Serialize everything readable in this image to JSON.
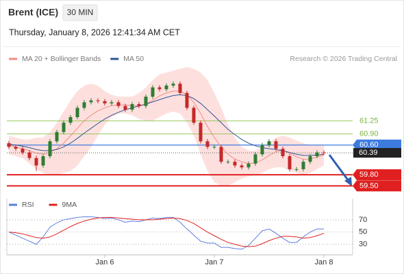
{
  "header": {
    "title": "Brent (ICE)",
    "interval": "30 MIN",
    "datetime": "Thursday, January 8, 2026 12:41:34 AM CET",
    "source": "Research © 2026 Trading Central"
  },
  "chart_data": [
    {
      "type": "candlestick",
      "categories": [
        null,
        null,
        null,
        null,
        null,
        null,
        null,
        null,
        null,
        null,
        null,
        null,
        null,
        null,
        "Jan 6",
        null,
        null,
        null,
        null,
        null,
        null,
        null,
        null,
        null,
        null,
        null,
        null,
        null,
        null,
        null,
        "Jan 7",
        null,
        null,
        null,
        null,
        null,
        null,
        null,
        null,
        null,
        null,
        null,
        null,
        null,
        null,
        null,
        "Jan 8"
      ],
      "open": [
        60.65,
        60.55,
        60.5,
        60.4,
        60.25,
        60.05,
        60.3,
        60.7,
        60.95,
        61.2,
        61.35,
        61.6,
        61.75,
        61.8,
        61.78,
        61.72,
        61.75,
        61.65,
        61.55,
        61.7,
        61.65,
        61.9,
        62.15,
        62.1,
        62.2,
        62.25,
        62.0,
        61.6,
        61.2,
        60.7,
        60.55,
        60.55,
        60.15,
        60.15,
        60.05,
        60.0,
        60.1,
        60.35,
        60.6,
        60.7,
        60.5,
        60.3,
        59.95,
        59.95,
        60.15,
        60.3,
        60.4
      ],
      "high": [
        60.71,
        60.61,
        60.56,
        60.46,
        60.31,
        60.36,
        60.76,
        61.01,
        61.26,
        61.41,
        61.66,
        61.81,
        61.86,
        61.86,
        61.84,
        61.81,
        61.81,
        61.71,
        61.76,
        61.76,
        61.96,
        62.21,
        62.21,
        62.26,
        62.31,
        62.31,
        62.06,
        61.66,
        61.26,
        60.76,
        60.61,
        60.61,
        60.21,
        60.21,
        60.11,
        60.16,
        60.41,
        60.66,
        60.76,
        60.76,
        60.56,
        60.36,
        60.01,
        60.21,
        60.36,
        60.46,
        60.46
      ],
      "low": [
        60.49,
        60.44,
        60.34,
        60.19,
        59.9,
        59.99,
        60.24,
        60.64,
        60.89,
        61.14,
        61.29,
        61.54,
        61.69,
        61.72,
        61.66,
        61.66,
        61.59,
        61.49,
        61.49,
        61.59,
        61.59,
        61.84,
        62.04,
        62.04,
        62.14,
        61.94,
        61.54,
        61.14,
        60.64,
        60.49,
        60.49,
        60.09,
        60.09,
        59.99,
        59.94,
        59.94,
        60.04,
        60.29,
        60.54,
        60.44,
        60.24,
        59.89,
        59.89,
        59.89,
        60.09,
        60.24,
        60.33
      ],
      "close": [
        60.55,
        60.5,
        60.4,
        60.25,
        60.05,
        60.3,
        60.7,
        60.95,
        61.2,
        61.35,
        61.6,
        61.75,
        61.8,
        61.78,
        61.72,
        61.75,
        61.65,
        61.55,
        61.7,
        61.65,
        61.9,
        62.15,
        62.1,
        62.2,
        62.25,
        62.0,
        61.6,
        61.2,
        60.7,
        60.55,
        60.55,
        60.15,
        60.15,
        60.05,
        60.0,
        60.1,
        60.35,
        60.6,
        60.7,
        60.5,
        60.3,
        59.95,
        59.95,
        60.15,
        60.3,
        60.4,
        60.39
      ],
      "up_color": "#2e7d32",
      "down_color": "#c62828",
      "series": [
        {
          "name": "MA 20 + Bollinger Bands",
          "color": "#f28b82",
          "band_color": "#fde0de",
          "values": [
            60.6,
            60.55,
            60.5,
            60.45,
            60.38,
            60.35,
            60.4,
            60.5,
            60.65,
            60.85,
            61.05,
            61.25,
            61.4,
            61.52,
            61.6,
            61.66,
            61.68,
            61.68,
            61.66,
            61.65,
            61.7,
            61.8,
            61.92,
            62.0,
            62.05,
            62.05,
            61.95,
            61.75,
            61.45,
            61.1,
            60.8,
            60.55,
            60.35,
            60.22,
            60.15,
            60.1,
            60.12,
            60.2,
            60.32,
            60.42,
            60.45,
            60.38,
            60.28,
            60.22,
            60.22,
            60.28,
            60.33
          ],
          "upper": [
            60.85,
            60.8,
            60.75,
            60.75,
            60.8,
            60.8,
            60.95,
            61.2,
            61.5,
            61.8,
            62.05,
            62.2,
            62.25,
            62.2,
            62.05,
            61.95,
            61.9,
            61.9,
            61.9,
            62.0,
            62.15,
            62.35,
            62.5,
            62.55,
            62.6,
            62.65,
            62.7,
            62.65,
            62.55,
            62.35,
            62.0,
            61.6,
            61.15,
            60.8,
            60.55,
            60.45,
            60.45,
            60.55,
            60.65,
            60.8,
            60.85,
            60.8,
            60.72,
            60.65,
            60.6,
            60.6,
            60.6
          ],
          "lower": [
            60.35,
            60.3,
            60.25,
            60.1,
            59.95,
            59.85,
            59.8,
            59.8,
            59.85,
            59.9,
            60.05,
            60.3,
            60.55,
            60.85,
            61.15,
            61.35,
            61.45,
            61.45,
            61.4,
            61.3,
            61.25,
            61.25,
            61.35,
            61.45,
            61.5,
            61.45,
            61.2,
            60.85,
            60.35,
            59.9,
            59.6,
            59.5,
            59.5,
            59.6,
            59.7,
            59.75,
            59.8,
            59.85,
            59.95,
            60.0,
            60.0,
            59.9,
            59.85,
            59.8,
            59.85,
            59.95,
            60.05
          ]
        },
        {
          "name": "MA 50",
          "color": "#2f5597",
          "values": [
            60.62,
            60.6,
            60.57,
            60.53,
            60.48,
            60.45,
            60.45,
            60.48,
            60.55,
            60.65,
            60.78,
            60.92,
            61.05,
            61.18,
            61.3,
            61.4,
            61.48,
            61.55,
            61.6,
            61.65,
            61.7,
            61.76,
            61.82,
            61.88,
            61.93,
            61.95,
            61.93,
            61.85,
            61.72,
            61.55,
            61.38,
            61.2,
            61.02,
            60.88,
            60.75,
            60.65,
            60.58,
            60.53,
            60.5,
            60.48,
            60.45,
            60.4,
            60.35,
            60.32,
            60.32,
            60.33,
            60.35
          ]
        }
      ],
      "levels": [
        {
          "value": 61.25,
          "label": "61.25",
          "color": "#8bc34a",
          "style": "text"
        },
        {
          "value": 60.9,
          "label": "60.90",
          "color": "#8bc34a",
          "style": "text"
        },
        {
          "value": 60.6,
          "label": "60.60",
          "color": "#3d7be0",
          "style": "box"
        },
        {
          "value": 60.39,
          "label": "60.39",
          "color": "#222222",
          "style": "last"
        },
        {
          "value": 59.8,
          "label": "59.80",
          "color": "#e02020",
          "style": "box"
        },
        {
          "value": 59.5,
          "label": "59.50",
          "color": "#e02020",
          "style": "box"
        }
      ],
      "ylim": [
        59.25,
        62.75
      ]
    },
    {
      "type": "line",
      "series": [
        {
          "name": "RSI",
          "color": "#5b7fdb",
          "values": [
            50,
            45,
            40,
            35,
            30,
            42,
            58,
            65,
            70,
            72,
            74,
            75,
            75,
            74,
            72,
            73,
            70,
            66,
            68,
            67,
            70,
            73,
            72,
            74,
            74,
            66,
            55,
            45,
            35,
            32,
            32,
            25,
            25,
            23,
            22,
            28,
            40,
            52,
            55,
            48,
            40,
            33,
            33,
            42,
            50,
            55,
            55
          ]
        },
        {
          "name": "9MA",
          "color": "#e02020",
          "values": [
            50,
            49,
            47,
            44,
            41,
            40,
            42,
            47,
            53,
            59,
            64,
            68,
            71,
            73,
            74,
            74,
            73,
            72,
            71,
            70,
            70,
            70,
            71,
            72,
            73,
            72,
            69,
            64,
            57,
            50,
            44,
            38,
            33,
            30,
            27,
            26,
            27,
            31,
            36,
            40,
            43,
            43,
            42,
            40,
            41,
            44,
            48
          ]
        }
      ],
      "ylim": [
        15,
        80
      ],
      "yticks": [
        70,
        50,
        30
      ],
      "grid": true
    }
  ]
}
